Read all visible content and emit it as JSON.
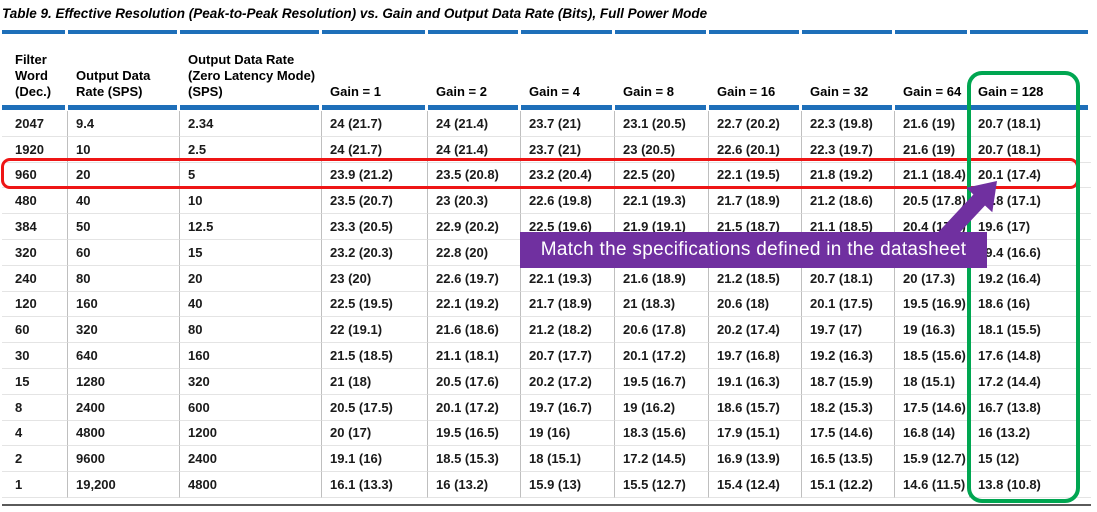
{
  "page": {
    "title": "Table 9. Effective Resolution (Peak-to-Peak Resolution) vs. Gain and Output Data Rate (Bits), Full Power Mode"
  },
  "table": {
    "columns": [
      {
        "key": "filter_word",
        "label": "Filter\nWord\n(Dec.)"
      },
      {
        "key": "output_data_rate_sps",
        "label": "Output Data\nRate (SPS)"
      },
      {
        "key": "output_data_rate_zero_latency_sps",
        "label": "Output Data Rate\n(Zero Latency Mode)\n(SPS)"
      },
      {
        "key": "gain_1",
        "label": "Gain = 1"
      },
      {
        "key": "gain_2",
        "label": "Gain = 2"
      },
      {
        "key": "gain_4",
        "label": "Gain = 4"
      },
      {
        "key": "gain_8",
        "label": "Gain = 8"
      },
      {
        "key": "gain_16",
        "label": "Gain = 16"
      },
      {
        "key": "gain_32",
        "label": "Gain = 32"
      },
      {
        "key": "gain_64",
        "label": "Gain = 64"
      },
      {
        "key": "gain_128",
        "label": "Gain = 128"
      }
    ],
    "rows": [
      [
        "2047",
        "9.4",
        "2.34",
        "24 (21.7)",
        "24 (21.4)",
        "23.7 (21)",
        "23.1 (20.5)",
        "22.7 (20.2)",
        "22.3 (19.8)",
        "21.6 (19)",
        "20.7 (18.1)"
      ],
      [
        "1920",
        "10",
        "2.5",
        "24 (21.7)",
        "24 (21.4)",
        "23.7 (21)",
        "23 (20.5)",
        "22.6 (20.1)",
        "22.3 (19.7)",
        "21.6 (19)",
        "20.7 (18.1)"
      ],
      [
        "960",
        "20",
        "5",
        "23.9 (21.2)",
        "23.5 (20.8)",
        "23.2 (20.4)",
        "22.5 (20)",
        "22.1 (19.5)",
        "21.8 (19.2)",
        "21.1 (18.4)",
        "20.1 (17.4)"
      ],
      [
        "480",
        "40",
        "10",
        "23.5 (20.7)",
        "23 (20.3)",
        "22.6 (19.8)",
        "22.1 (19.3)",
        "21.7 (18.9)",
        "21.2 (18.6)",
        "20.5 (17.8)",
        "19.8 (17.1)"
      ],
      [
        "384",
        "50",
        "12.5",
        "23.3 (20.5)",
        "22.9 (20.2)",
        "22.5 (19.6)",
        "21.9 (19.1)",
        "21.5 (18.7)",
        "21.1 (18.5)",
        "20.4 (17.7)",
        "19.6 (17)"
      ],
      [
        "320",
        "60",
        "15",
        "23.2 (20.3)",
        "22.8 (20)",
        "",
        "",
        "",
        "",
        "",
        "19.4 (16.6)"
      ],
      [
        "240",
        "80",
        "20",
        "23 (20)",
        "22.6 (19.7)",
        "22.1 (19.3)",
        "21.6 (18.9)",
        "21.2 (18.5)",
        "20.7 (18.1)",
        "20 (17.3)",
        "19.2 (16.4)"
      ],
      [
        "120",
        "160",
        "40",
        "22.5 (19.5)",
        "22.1 (19.2)",
        "21.7 (18.9)",
        "21 (18.3)",
        "20.6 (18)",
        "20.1 (17.5)",
        "19.5 (16.9)",
        "18.6 (16)"
      ],
      [
        "60",
        "320",
        "80",
        "22 (19.1)",
        "21.6 (18.6)",
        "21.2 (18.2)",
        "20.6 (17.8)",
        "20.2 (17.4)",
        "19.7 (17)",
        "19 (16.3)",
        "18.1 (15.5)"
      ],
      [
        "30",
        "640",
        "160",
        "21.5 (18.5)",
        "21.1 (18.1)",
        "20.7 (17.7)",
        "20.1 (17.2)",
        "19.7 (16.8)",
        "19.2 (16.3)",
        "18.5 (15.6)",
        "17.6 (14.8)"
      ],
      [
        "15",
        "1280",
        "320",
        "21 (18)",
        "20.5 (17.6)",
        "20.2 (17.2)",
        "19.5 (16.7)",
        "19.1 (16.3)",
        "18.7 (15.9)",
        "18 (15.1)",
        "17.2 (14.4)"
      ],
      [
        "8",
        "2400",
        "600",
        "20.5 (17.5)",
        "20.1 (17.2)",
        "19.7 (16.7)",
        "19 (16.2)",
        "18.6 (15.7)",
        "18.2 (15.3)",
        "17.5 (14.6)",
        "16.7 (13.8)"
      ],
      [
        "4",
        "4800",
        "1200",
        "20 (17)",
        "19.5 (16.5)",
        "19 (16)",
        "18.3 (15.6)",
        "17.9 (15.1)",
        "17.5 (14.6)",
        "16.8 (14)",
        "16 (13.2)"
      ],
      [
        "2",
        "9600",
        "2400",
        "19.1 (16)",
        "18.5 (15.3)",
        "18 (15.1)",
        "17.2 (14.5)",
        "16.9 (13.9)",
        "16.5 (13.5)",
        "15.9 (12.7)",
        "15 (12)"
      ],
      [
        "1",
        "19,200",
        "4800",
        "16.1 (13.3)",
        "16 (13.2)",
        "15.9 (13)",
        "15.5 (12.7)",
        "15.4 (12.4)",
        "15.1 (12.2)",
        "14.6 (11.5)",
        "13.8 (10.8)"
      ]
    ]
  },
  "annotations": {
    "callout_text": "Match the specifications defined in the datasheet",
    "highlighted_row_filter_word": "960",
    "highlighted_column_header": "Gain = 128",
    "colors": {
      "table_rule_blue": "#1E6FB9",
      "row_highlight_red": "#EE1515",
      "column_highlight_green": "#00A651",
      "annotation_purple": "#7030A0"
    }
  }
}
